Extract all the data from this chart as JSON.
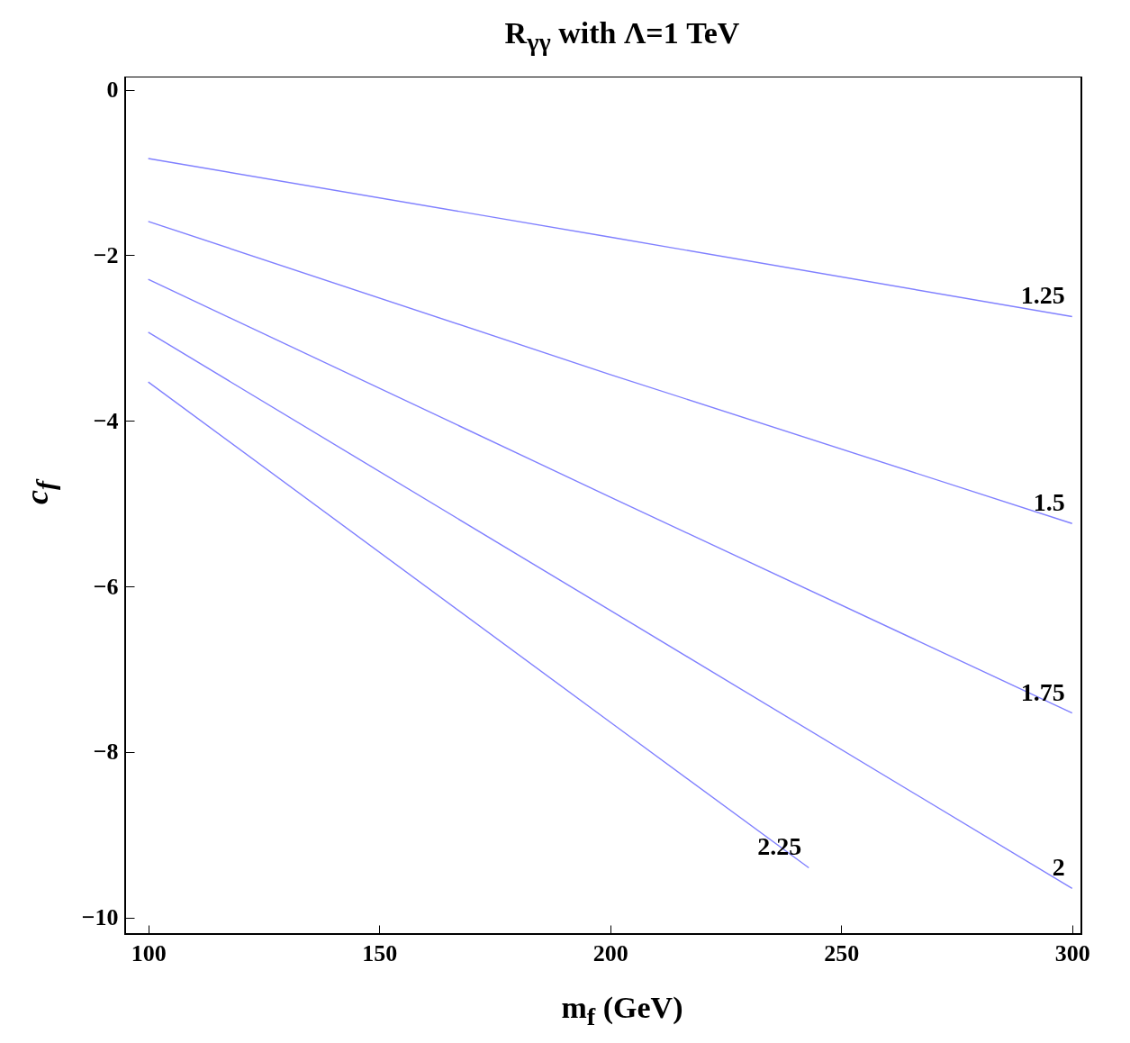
{
  "chart_data": {
    "type": "line",
    "title": "R$_{γγ}$ with Λ=1 TeV",
    "xlabel": "m$_{f}$  (GeV)",
    "ylabel": "c$_{f}$",
    "xlim": [
      95,
      302
    ],
    "ylim": [
      -10.2,
      0.16
    ],
    "xticks": [
      100,
      150,
      200,
      250,
      300
    ],
    "yticks": [
      0,
      -2,
      -4,
      -6,
      -8,
      -10
    ],
    "grid": false,
    "legend": false,
    "line_style": "solid",
    "marker": "none",
    "series": [
      {
        "name": "1.25",
        "color": "#8080ff",
        "x": [
          100,
          200,
          300
        ],
        "values": [
          -0.83,
          -1.78,
          -2.74
        ]
      },
      {
        "name": "1.5",
        "color": "#8080ff",
        "x": [
          100,
          200,
          300
        ],
        "values": [
          -1.59,
          -3.44,
          -5.24
        ]
      },
      {
        "name": "1.75",
        "color": "#8080ff",
        "x": [
          100,
          200,
          300
        ],
        "values": [
          -2.29,
          -4.92,
          -7.53
        ]
      },
      {
        "name": "2",
        "color": "#8080ff",
        "x": [
          100,
          200,
          300
        ],
        "values": [
          -2.93,
          -6.29,
          -9.65
        ]
      },
      {
        "name": "2.25",
        "color": "#8080ff",
        "x": [
          100,
          200,
          243
        ],
        "values": [
          -3.53,
          -7.64,
          -9.4
        ]
      }
    ]
  }
}
